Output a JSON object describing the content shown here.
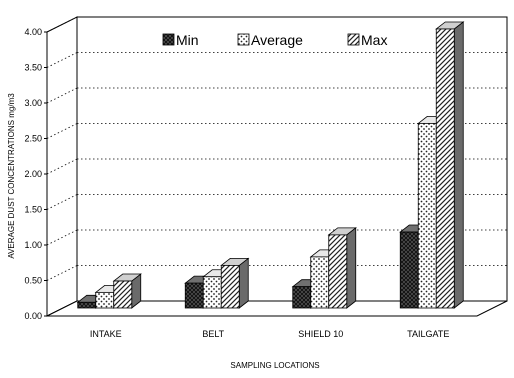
{
  "chart_data": {
    "type": "bar",
    "categories": [
      "INTAKE",
      "BELT",
      "SHIELD 10",
      "TAILGATE"
    ],
    "series": [
      {
        "name": "Min",
        "values": [
          0.08,
          0.35,
          0.3,
          1.07
        ],
        "fill": "#3a3a3a",
        "pattern": "crosshatch-dark"
      },
      {
        "name": "Average",
        "values": [
          0.22,
          0.44,
          0.72,
          2.6
        ],
        "fill": "#ffffff",
        "pattern": "dotted"
      },
      {
        "name": "Max",
        "values": [
          0.38,
          0.6,
          1.03,
          3.93
        ],
        "fill": "#bdbdbd",
        "pattern": "diagonal-stripes"
      }
    ],
    "ylim": [
      0,
      4
    ],
    "yticks": [
      "0.00",
      "0.50",
      "1.00",
      "1.50",
      "2.00",
      "2.50",
      "3.00",
      "3.50",
      "4.00"
    ],
    "ylabel": "AVERAGE DUST CONCENTRATIONS mg/m3",
    "xlabel": "SAMPLING LOCATIONS",
    "grid": true,
    "legend_position": "top",
    "projection": "3d"
  }
}
